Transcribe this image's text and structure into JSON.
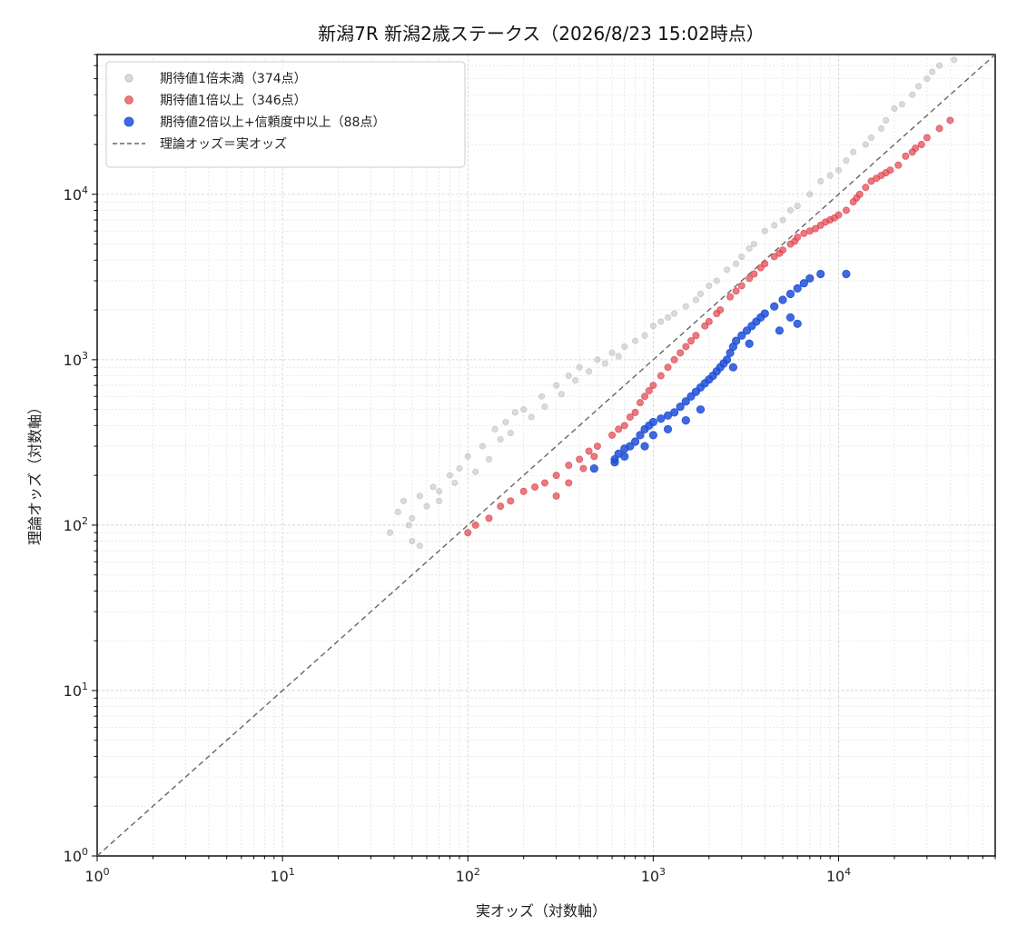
{
  "chart_data": {
    "type": "scatter",
    "title": "新潟7R 新潟2歳ステークス（2026/8/23 15:02時点）",
    "xlabel": "実オッズ（対数軸）",
    "ylabel": "理論オッズ（対数軸）",
    "xscale": "log",
    "yscale": "log",
    "xlim": [
      1,
      70000
    ],
    "ylim": [
      1,
      70000
    ],
    "x_ticks": [
      "10^0",
      "10^1",
      "10^2",
      "10^3",
      "10^4"
    ],
    "y_ticks": [
      "10^0",
      "10^1",
      "10^2",
      "10^3",
      "10^4"
    ],
    "grid": true,
    "legend_position": "upper-left",
    "series": [
      {
        "name": "期待値1倍未満（374点）",
        "color": "#b0b0b0",
        "points": [
          [
            38,
            90
          ],
          [
            42,
            120
          ],
          [
            45,
            140
          ],
          [
            50,
            110
          ],
          [
            55,
            150
          ],
          [
            60,
            130
          ],
          [
            65,
            170
          ],
          [
            70,
            160
          ],
          [
            80,
            200
          ],
          [
            90,
            220
          ],
          [
            100,
            260
          ],
          [
            120,
            300
          ],
          [
            140,
            380
          ],
          [
            160,
            420
          ],
          [
            180,
            480
          ],
          [
            200,
            500
          ],
          [
            250,
            600
          ],
          [
            300,
            700
          ],
          [
            350,
            800
          ],
          [
            400,
            900
          ],
          [
            500,
            1000
          ],
          [
            600,
            1100
          ],
          [
            700,
            1200
          ],
          [
            800,
            1300
          ],
          [
            1000,
            1600
          ],
          [
            1200,
            1800
          ],
          [
            1500,
            2100
          ],
          [
            1800,
            2500
          ],
          [
            2000,
            2800
          ],
          [
            2500,
            3500
          ],
          [
            3000,
            4200
          ],
          [
            3500,
            5000
          ],
          [
            4000,
            6000
          ],
          [
            5000,
            7000
          ],
          [
            6000,
            8500
          ],
          [
            7000,
            10000
          ],
          [
            8000,
            12000
          ],
          [
            10000,
            14000
          ],
          [
            12000,
            18000
          ],
          [
            15000,
            22000
          ],
          [
            18000,
            28000
          ],
          [
            20000,
            33000
          ],
          [
            25000,
            40000
          ],
          [
            30000,
            50000
          ],
          [
            35000,
            60000
          ],
          [
            42000,
            65000
          ],
          [
            50,
            80
          ],
          [
            55,
            75
          ],
          [
            48,
            100
          ],
          [
            70,
            140
          ],
          [
            85,
            180
          ],
          [
            110,
            210
          ],
          [
            130,
            250
          ],
          [
            150,
            330
          ],
          [
            170,
            360
          ],
          [
            220,
            450
          ],
          [
            260,
            520
          ],
          [
            320,
            620
          ],
          [
            380,
            750
          ],
          [
            450,
            850
          ],
          [
            550,
            950
          ],
          [
            650,
            1050
          ],
          [
            900,
            1400
          ],
          [
            1100,
            1700
          ],
          [
            1300,
            1900
          ],
          [
            1700,
            2300
          ],
          [
            2200,
            3000
          ],
          [
            2800,
            3800
          ],
          [
            3300,
            4700
          ],
          [
            4500,
            6500
          ],
          [
            5500,
            8000
          ],
          [
            9000,
            13000
          ],
          [
            11000,
            16000
          ],
          [
            14000,
            20000
          ],
          [
            17000,
            25000
          ],
          [
            22000,
            35000
          ],
          [
            27000,
            45000
          ],
          [
            32000,
            55000
          ]
        ]
      },
      {
        "name": "期待値1倍以上（346点）",
        "color": "#e0424a",
        "points": [
          [
            100,
            90
          ],
          [
            110,
            100
          ],
          [
            130,
            110
          ],
          [
            150,
            130
          ],
          [
            170,
            140
          ],
          [
            200,
            160
          ],
          [
            230,
            170
          ],
          [
            260,
            180
          ],
          [
            300,
            200
          ],
          [
            350,
            230
          ],
          [
            400,
            250
          ],
          [
            450,
            280
          ],
          [
            500,
            300
          ],
          [
            600,
            350
          ],
          [
            700,
            400
          ],
          [
            800,
            480
          ],
          [
            900,
            600
          ],
          [
            1000,
            700
          ],
          [
            1100,
            800
          ],
          [
            1200,
            900
          ],
          [
            1300,
            1000
          ],
          [
            1500,
            1200
          ],
          [
            1700,
            1400
          ],
          [
            2000,
            1700
          ],
          [
            2300,
            2000
          ],
          [
            2600,
            2400
          ],
          [
            3000,
            2800
          ],
          [
            3500,
            3300
          ],
          [
            4000,
            3800
          ],
          [
            4500,
            4200
          ],
          [
            5000,
            4600
          ],
          [
            5500,
            5000
          ],
          [
            6000,
            5500
          ],
          [
            7000,
            6000
          ],
          [
            8000,
            6500
          ],
          [
            9000,
            7000
          ],
          [
            10000,
            7500
          ],
          [
            11000,
            8000
          ],
          [
            12000,
            9000
          ],
          [
            13000,
            10000
          ],
          [
            14000,
            11000
          ],
          [
            15000,
            12000
          ],
          [
            17000,
            13000
          ],
          [
            19000,
            14000
          ],
          [
            21000,
            15000
          ],
          [
            23000,
            17000
          ],
          [
            26000,
            19000
          ],
          [
            30000,
            22000
          ],
          [
            35000,
            25000
          ],
          [
            40000,
            28000
          ],
          [
            300,
            150
          ],
          [
            350,
            180
          ],
          [
            420,
            220
          ],
          [
            480,
            260
          ],
          [
            650,
            380
          ],
          [
            750,
            450
          ],
          [
            850,
            550
          ],
          [
            950,
            650
          ],
          [
            1400,
            1100
          ],
          [
            1600,
            1300
          ],
          [
            1900,
            1600
          ],
          [
            2200,
            1900
          ],
          [
            2800,
            2600
          ],
          [
            3300,
            3100
          ],
          [
            3800,
            3600
          ],
          [
            4800,
            4400
          ],
          [
            5800,
            5200
          ],
          [
            6500,
            5800
          ],
          [
            7500,
            6200
          ],
          [
            8500,
            6800
          ],
          [
            9500,
            7200
          ],
          [
            12500,
            9500
          ],
          [
            16000,
            12500
          ],
          [
            18000,
            13500
          ],
          [
            25000,
            18000
          ],
          [
            28000,
            20000
          ]
        ]
      },
      {
        "name": "期待値2倍以上+信頼度中以上（88点）",
        "color": "#1f4fd8",
        "points": [
          [
            480,
            220
          ],
          [
            620,
            250
          ],
          [
            650,
            270
          ],
          [
            700,
            290
          ],
          [
            750,
            300
          ],
          [
            800,
            320
          ],
          [
            850,
            350
          ],
          [
            900,
            380
          ],
          [
            950,
            400
          ],
          [
            1000,
            420
          ],
          [
            1100,
            440
          ],
          [
            1200,
            460
          ],
          [
            1300,
            480
          ],
          [
            1400,
            520
          ],
          [
            1500,
            560
          ],
          [
            1600,
            600
          ],
          [
            1700,
            640
          ],
          [
            1800,
            680
          ],
          [
            1900,
            720
          ],
          [
            2000,
            760
          ],
          [
            2100,
            800
          ],
          [
            2200,
            850
          ],
          [
            2300,
            900
          ],
          [
            2400,
            950
          ],
          [
            2500,
            1000
          ],
          [
            2600,
            1100
          ],
          [
            2700,
            1200
          ],
          [
            2800,
            1300
          ],
          [
            3000,
            1400
          ],
          [
            3200,
            1500
          ],
          [
            3400,
            1600
          ],
          [
            3600,
            1700
          ],
          [
            3800,
            1800
          ],
          [
            4000,
            1900
          ],
          [
            4500,
            2100
          ],
          [
            5000,
            2300
          ],
          [
            5500,
            2500
          ],
          [
            6000,
            2700
          ],
          [
            6500,
            2900
          ],
          [
            7000,
            3100
          ],
          [
            8000,
            3300
          ],
          [
            11000,
            3300
          ],
          [
            6000,
            1650
          ],
          [
            5500,
            1800
          ],
          [
            4800,
            1500
          ],
          [
            3300,
            1250
          ],
          [
            2700,
            900
          ],
          [
            1800,
            500
          ],
          [
            1500,
            430
          ],
          [
            1200,
            380
          ],
          [
            1000,
            350
          ],
          [
            900,
            300
          ],
          [
            700,
            260
          ],
          [
            620,
            240
          ]
        ]
      }
    ],
    "reference_line": {
      "name": "理論オッズ＝実オッズ",
      "color": "#666666"
    }
  }
}
